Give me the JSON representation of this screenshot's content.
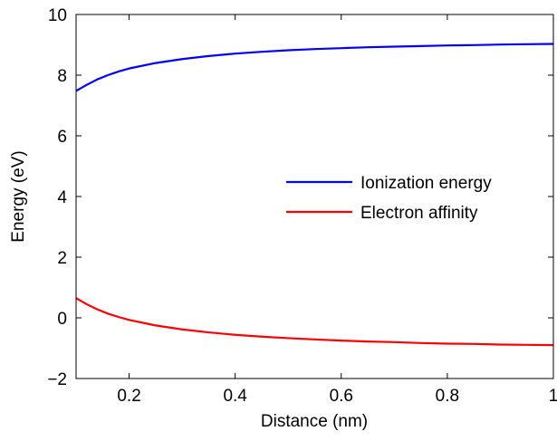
{
  "chart_data": {
    "type": "line",
    "xlabel": "Distance (nm)",
    "ylabel": "Energy (eV)",
    "xlim": [
      0.1,
      1.0
    ],
    "ylim": [
      -2,
      10
    ],
    "xticks": [
      0.2,
      0.4,
      0.6,
      0.8,
      1.0
    ],
    "xtick_labels": [
      "0.2",
      "0.4",
      "0.6",
      "0.8",
      "1"
    ],
    "yticks": [
      -2,
      0,
      2,
      4,
      6,
      8,
      10
    ],
    "ytick_labels": [
      "−2",
      "0",
      "2",
      "4",
      "6",
      "8",
      "10"
    ],
    "grid": false,
    "legend_position": "center-right",
    "series": [
      {
        "name": "Ionization energy",
        "color": "#0000ff",
        "x": [
          0.1,
          0.12,
          0.14,
          0.16,
          0.18,
          0.2,
          0.25,
          0.3,
          0.35,
          0.4,
          0.45,
          0.5,
          0.55,
          0.6,
          0.65,
          0.7,
          0.75,
          0.8,
          0.85,
          0.9,
          0.95,
          1.0
        ],
        "y": [
          7.48,
          7.68,
          7.86,
          8.0,
          8.12,
          8.22,
          8.4,
          8.53,
          8.63,
          8.71,
          8.77,
          8.82,
          8.86,
          8.89,
          8.92,
          8.94,
          8.96,
          8.98,
          8.99,
          9.01,
          9.02,
          9.03
        ]
      },
      {
        "name": "Electron affinity",
        "color": "#ff0000",
        "x": [
          0.1,
          0.12,
          0.14,
          0.16,
          0.18,
          0.2,
          0.25,
          0.3,
          0.35,
          0.4,
          0.45,
          0.5,
          0.55,
          0.6,
          0.65,
          0.7,
          0.75,
          0.8,
          0.85,
          0.9,
          0.95,
          1.0
        ],
        "y": [
          0.65,
          0.45,
          0.28,
          0.14,
          0.03,
          -0.07,
          -0.25,
          -0.38,
          -0.48,
          -0.56,
          -0.62,
          -0.67,
          -0.71,
          -0.75,
          -0.78,
          -0.8,
          -0.83,
          -0.85,
          -0.86,
          -0.88,
          -0.89,
          -0.9
        ]
      }
    ]
  }
}
